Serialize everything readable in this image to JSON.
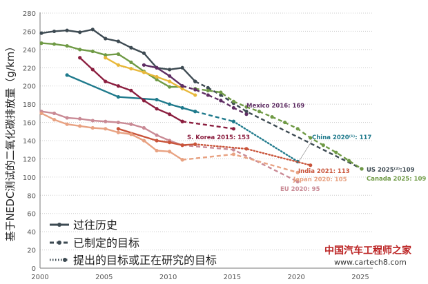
{
  "chart_data": {
    "type": "line",
    "title": "",
    "xlabel": "",
    "ylabel": "基于NEDC测试的二氧化碳排放量（g/km）",
    "xlim": [
      2000,
      2025
    ],
    "ylim": [
      0,
      280
    ],
    "x_ticks": [
      "2000",
      "2005",
      "2010",
      "2015",
      "2020",
      "2025"
    ],
    "y_ticks": [
      "0",
      "20",
      "40",
      "60",
      "80",
      "100",
      "120",
      "140",
      "160",
      "180",
      "200",
      "220",
      "240",
      "260",
      "280"
    ],
    "grid": "horizontal dotted",
    "legend_placement": "bottom-left",
    "legend": [
      {
        "label": "过往历史",
        "style": "solid"
      },
      {
        "label": "已制定的目标",
        "style": "dashed"
      },
      {
        "label": "提出的目标或正在研究的目标",
        "style": "dotted"
      }
    ],
    "series": [
      {
        "label": "US 2025⁽²⁾:109",
        "color": "#3d4a52",
        "history": [
          [
            2000,
            258
          ],
          [
            2001,
            260
          ],
          [
            2002,
            261
          ],
          [
            2003,
            259
          ],
          [
            2004,
            262
          ],
          [
            2005,
            252
          ],
          [
            2006,
            249
          ],
          [
            2007,
            242
          ],
          [
            2008,
            236
          ],
          [
            2009,
            220
          ],
          [
            2010,
            218
          ],
          [
            2011,
            220
          ],
          [
            2012,
            205
          ]
        ],
        "enacted": [
          [
            2012,
            205
          ],
          [
            2013,
            198
          ],
          [
            2014,
            190
          ],
          [
            2015,
            181
          ],
          [
            2016,
            172
          ],
          [
            2025,
            109
          ]
        ],
        "proposed": []
      },
      {
        "label": "Canada 2025: 109",
        "color": "#6f9a45",
        "history": [
          [
            2000,
            247
          ],
          [
            2001,
            246
          ],
          [
            2002,
            244
          ],
          [
            2003,
            240
          ],
          [
            2004,
            238
          ],
          [
            2005,
            234
          ],
          [
            2006,
            235
          ],
          [
            2007,
            226
          ],
          [
            2008,
            216
          ],
          [
            2009,
            207
          ],
          [
            2010,
            199
          ],
          [
            2011,
            199
          ]
        ],
        "enacted": [
          [
            2012,
            197
          ],
          [
            2013,
            195
          ],
          [
            2014,
            193
          ],
          [
            2015,
            183
          ],
          [
            2016,
            177
          ],
          [
            2017,
            172
          ],
          [
            2018,
            166
          ],
          [
            2019,
            160
          ],
          [
            2020,
            153
          ],
          [
            2021,
            143
          ],
          [
            2022,
            135
          ],
          [
            2023,
            127
          ],
          [
            2024,
            118
          ],
          [
            2025,
            109
          ]
        ],
        "proposed": []
      },
      {
        "label": "",
        "color": "#e8b83a",
        "history": [
          [
            2005,
            231
          ],
          [
            2006,
            223
          ],
          [
            2007,
            219
          ],
          [
            2008,
            215
          ],
          [
            2009,
            210
          ],
          [
            2010,
            205
          ],
          [
            2011,
            197
          ],
          [
            2012,
            190
          ]
        ],
        "enacted": [],
        "proposed": []
      },
      {
        "label": "Mexico 2016: 169",
        "color": "#5e2d63",
        "history": [
          [
            2008,
            223
          ],
          [
            2009,
            220
          ],
          [
            2010,
            211
          ],
          [
            2011,
            200
          ]
        ],
        "enacted": [
          [
            2011,
            200
          ],
          [
            2012,
            196
          ],
          [
            2013,
            190
          ],
          [
            2014,
            184
          ],
          [
            2015,
            176
          ],
          [
            2016,
            169
          ]
        ],
        "proposed": []
      },
      {
        "label": "China 2020⁽¹⁾: 117",
        "color": "#1f7a8c",
        "history": [
          [
            2002,
            212
          ],
          [
            2006,
            188
          ],
          [
            2009,
            185
          ],
          [
            2010,
            180
          ],
          [
            2011,
            176
          ],
          [
            2012,
            172
          ]
        ],
        "enacted": [
          [
            2012,
            172
          ],
          [
            2015,
            161
          ]
        ],
        "proposed": [
          [
            2015,
            161
          ],
          [
            2020,
            117
          ]
        ]
      },
      {
        "label": "S. Korea 2015: 153",
        "color": "#8b1e3f",
        "history": [
          [
            2003,
            231
          ],
          [
            2004,
            218
          ],
          [
            2005,
            205
          ],
          [
            2006,
            200
          ],
          [
            2007,
            195
          ],
          [
            2008,
            184
          ],
          [
            2009,
            175
          ],
          [
            2010,
            169
          ],
          [
            2011,
            161
          ]
        ],
        "enacted": [
          [
            2011,
            161
          ],
          [
            2015,
            153
          ]
        ],
        "proposed": []
      },
      {
        "label": "EU 2020: 95",
        "color": "#c98a95",
        "history": [
          [
            2000,
            172
          ],
          [
            2001,
            170
          ],
          [
            2002,
            165
          ],
          [
            2003,
            164
          ],
          [
            2004,
            162
          ],
          [
            2005,
            161
          ],
          [
            2006,
            160
          ],
          [
            2007,
            158
          ],
          [
            2008,
            154
          ],
          [
            2009,
            146
          ],
          [
            2010,
            140
          ],
          [
            2011,
            135
          ]
        ],
        "enacted": [
          [
            2011,
            135
          ],
          [
            2015,
            130
          ],
          [
            2020,
            95
          ]
        ],
        "proposed": []
      },
      {
        "label": "India 2021: 113",
        "color": "#c9543a",
        "history": [
          [
            2006,
            153
          ],
          [
            2009,
            140
          ],
          [
            2010,
            138
          ],
          [
            2011,
            135
          ],
          [
            2012,
            136
          ]
        ],
        "enacted": [],
        "proposed": [
          [
            2012,
            136
          ],
          [
            2016,
            131
          ],
          [
            2021,
            113
          ]
        ]
      },
      {
        "label": "Japan 2020: 105",
        "color": "#e8a282",
        "history": [
          [
            2000,
            170
          ],
          [
            2001,
            163
          ],
          [
            2002,
            158
          ],
          [
            2003,
            156
          ],
          [
            2004,
            154
          ],
          [
            2005,
            153
          ],
          [
            2006,
            149
          ],
          [
            2007,
            147
          ],
          [
            2008,
            140
          ],
          [
            2009,
            129
          ],
          [
            2010,
            128
          ],
          [
            2011,
            119
          ]
        ],
        "enacted": [
          [
            2011,
            119
          ],
          [
            2015,
            125
          ],
          [
            2020,
            105
          ]
        ],
        "proposed": []
      }
    ]
  },
  "watermark": {
    "text": "中国汽车工程师之家",
    "url": "www.cartech8.com"
  }
}
